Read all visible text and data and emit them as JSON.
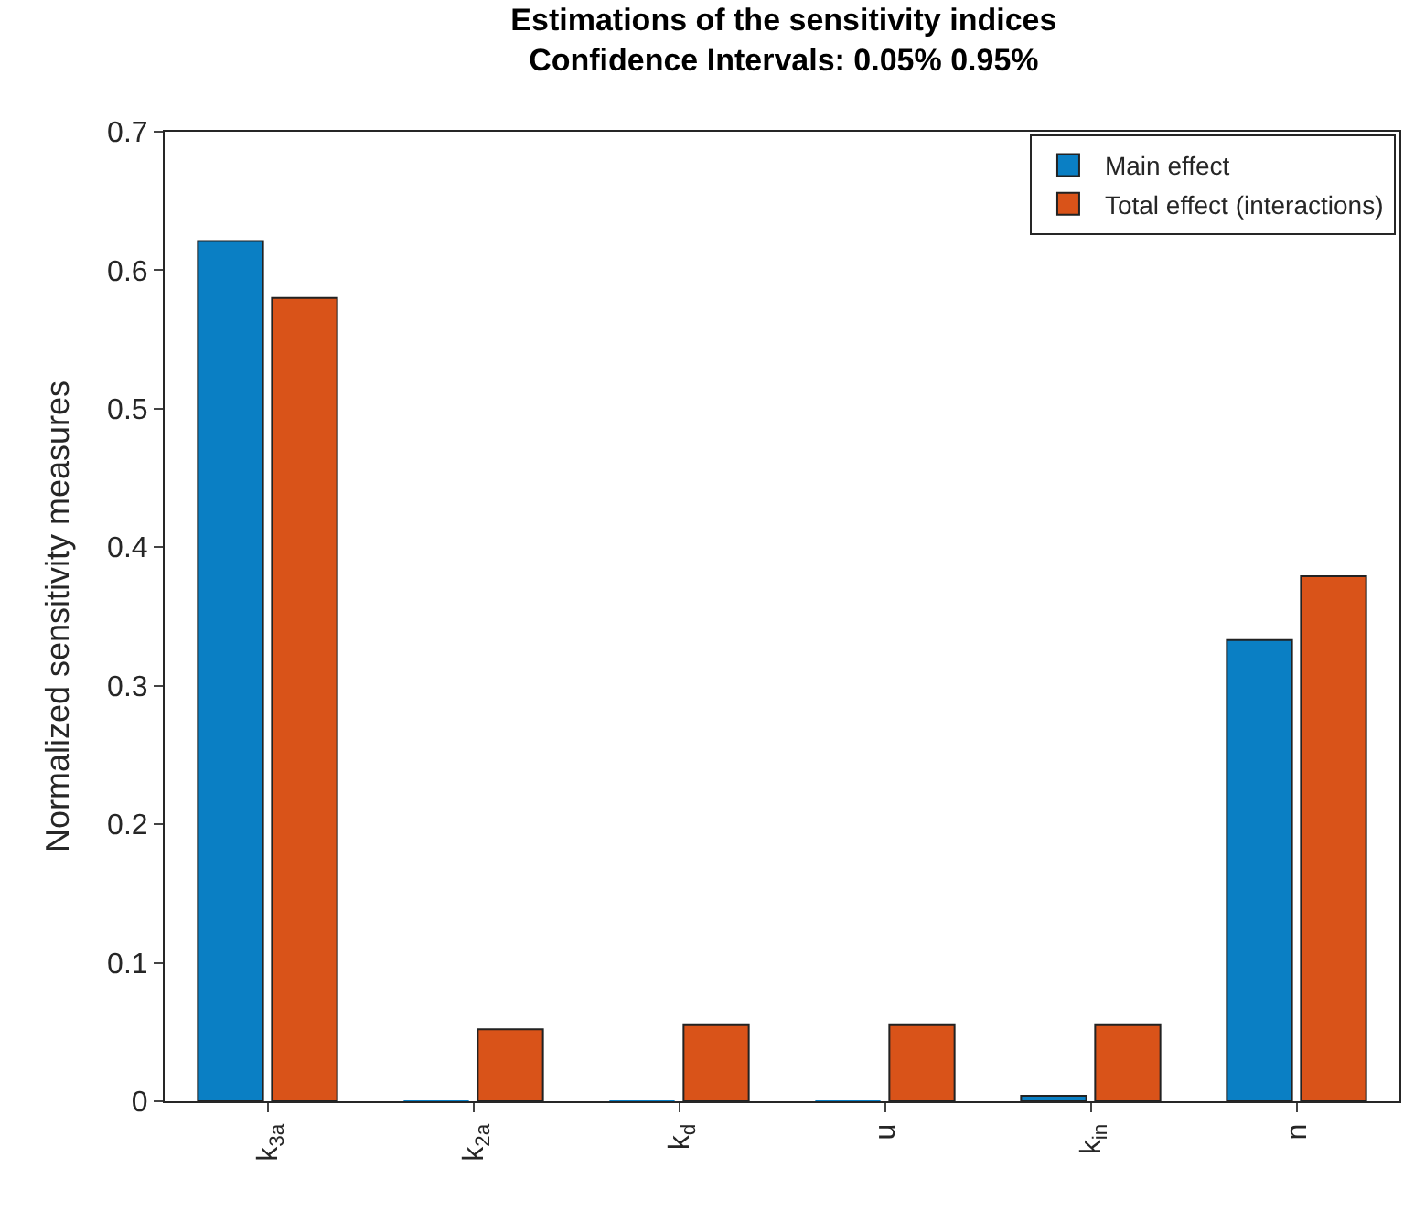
{
  "chart_data": {
    "type": "bar",
    "title": "Estimations of the sensitivity indices\nConfidence Intervals: 0.05% 0.95%",
    "ylabel": "Normalized sensitivity measures",
    "categories": [
      "k$_{3a}$",
      "k$_{2a}$",
      "k$_{d}$",
      "u",
      "k$_{in}$",
      "n"
    ],
    "series": [
      {
        "name": "Main effect",
        "color": "#0a7fc4",
        "values": [
          0.621,
          0,
          0,
          0,
          0.004,
          0.333
        ]
      },
      {
        "name": "Total effect (interactions)",
        "color": "#d95319",
        "values": [
          0.58,
          0.052,
          0.055,
          0.055,
          0.055,
          0.379
        ]
      }
    ],
    "ylim": [
      0,
      0.7
    ],
    "yticks": [
      0,
      0.1,
      0.2,
      0.3,
      0.4,
      0.5,
      0.6,
      0.7
    ],
    "legend": "top right"
  }
}
